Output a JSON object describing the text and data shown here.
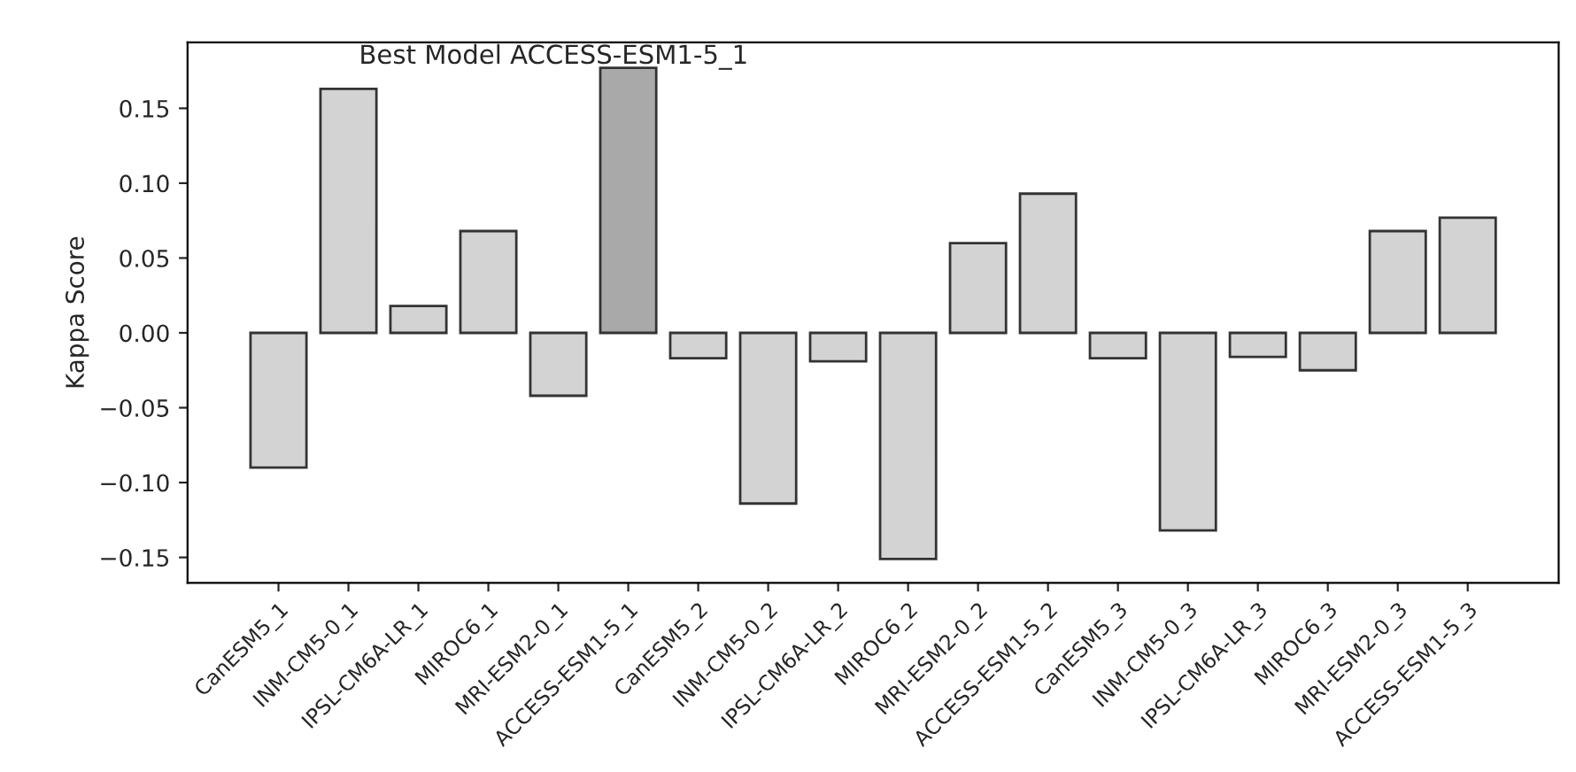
{
  "chart_data": {
    "type": "bar",
    "ylabel": "Kappa Score",
    "annotations": [
      "Best Model ACCESS-ESM1-5_1"
    ],
    "categories": [
      "CanESM5_1",
      "INM-CM5-0_1",
      "IPSL-CM6A-LR_1",
      "MIROC6_1",
      "MRI-ESM2-0_1",
      "ACCESS-ESM1-5_1",
      "CanESM5_2",
      "INM-CM5-0_2",
      "IPSL-CM6A-LR_2",
      "MIROC6_2",
      "MRI-ESM2-0_2",
      "ACCESS-ESM1-5_2",
      "CanESM5_3",
      "INM-CM5-0_3",
      "IPSL-CM6A-LR_3",
      "MIROC6_3",
      "MRI-ESM2-0_3",
      "ACCESS-ESM1-5_3"
    ],
    "values": [
      -0.09,
      0.163,
      0.018,
      0.068,
      -0.042,
      0.177,
      -0.017,
      -0.114,
      -0.019,
      -0.151,
      0.06,
      0.093,
      -0.017,
      -0.132,
      -0.016,
      -0.025,
      0.068,
      0.077
    ],
    "colors": [
      "#d3d3d3",
      "#d3d3d3",
      "#d3d3d3",
      "#d3d3d3",
      "#d3d3d3",
      "#a9a9a9",
      "#d3d3d3",
      "#d3d3d3",
      "#d3d3d3",
      "#d3d3d3",
      "#d3d3d3",
      "#d3d3d3",
      "#d3d3d3",
      "#d3d3d3",
      "#d3d3d3",
      "#d3d3d3",
      "#d3d3d3",
      "#d3d3d3"
    ],
    "ylim": [
      -0.167,
      0.194
    ],
    "yticks": [
      {
        "value": -0.15,
        "label": "−0.15"
      },
      {
        "value": -0.1,
        "label": "−0.10"
      },
      {
        "value": -0.05,
        "label": "−0.05"
      },
      {
        "value": 0.0,
        "label": "0.00"
      },
      {
        "value": 0.05,
        "label": "0.05"
      },
      {
        "value": 0.1,
        "label": "0.10"
      },
      {
        "value": 0.15,
        "label": "0.15"
      }
    ],
    "grid": false
  }
}
